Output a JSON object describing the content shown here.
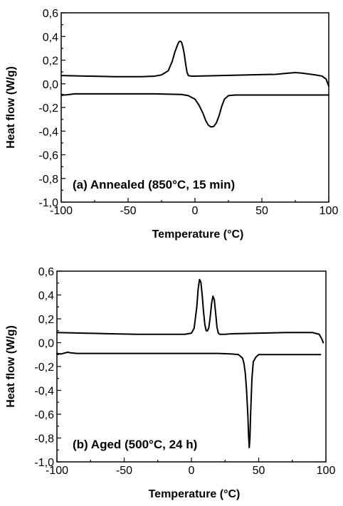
{
  "chart_data": [
    {
      "type": "line",
      "panel_label": "(a) Annealed (850°C, 15 min)",
      "xlabel": "Temperature (°C)",
      "ylabel": "Heat flow (W/g)",
      "xlim": [
        -100,
        100
      ],
      "ylim": [
        -1.0,
        0.6
      ],
      "x_ticks": [
        -100,
        -50,
        0,
        50,
        100
      ],
      "x_tick_labels": [
        "-100",
        "-50",
        "0",
        "50",
        "100"
      ],
      "y_ticks": [
        0.6,
        0.4,
        0.2,
        0.0,
        -0.2,
        -0.4,
        -0.6,
        -0.8,
        -1.0
      ],
      "y_tick_labels": [
        "0,6",
        "0,4",
        "0,2",
        "0,0",
        "-0,2",
        "-0,4",
        "-0,6",
        "-0,8",
        "-1,0"
      ],
      "grid": false,
      "series": [
        {
          "x": [
            -100,
            -80,
            -60,
            -40,
            -30,
            -25,
            -20,
            -17,
            -15,
            -13,
            -12,
            -11,
            -10,
            -9,
            -8,
            -7,
            -6,
            -5,
            -3,
            0,
            20,
            40,
            60,
            70,
            75,
            80,
            90,
            95,
            98,
            100
          ],
          "y": [
            0.07,
            0.065,
            0.06,
            0.06,
            0.065,
            0.075,
            0.11,
            0.19,
            0.27,
            0.33,
            0.355,
            0.36,
            0.35,
            0.31,
            0.25,
            0.17,
            0.1,
            0.07,
            0.065,
            0.065,
            0.07,
            0.075,
            0.08,
            0.09,
            0.095,
            0.09,
            0.075,
            0.065,
            0.04,
            -0.02
          ]
        },
        {
          "x": [
            -100,
            -97,
            -90,
            -70,
            -50,
            -30,
            -10,
            -5,
            0,
            3,
            6,
            8,
            10,
            12,
            14,
            16,
            18,
            20,
            22,
            25,
            30,
            40,
            60,
            80,
            100
          ],
          "y": [
            -0.09,
            -0.095,
            -0.085,
            -0.085,
            -0.085,
            -0.085,
            -0.09,
            -0.1,
            -0.13,
            -0.18,
            -0.25,
            -0.31,
            -0.35,
            -0.365,
            -0.36,
            -0.33,
            -0.27,
            -0.19,
            -0.13,
            -0.1,
            -0.095,
            -0.095,
            -0.095,
            -0.095,
            -0.095
          ]
        }
      ]
    },
    {
      "type": "line",
      "panel_label": "(b) Aged (500°C, 24 h)",
      "xlabel": "Temperature (°C)",
      "ylabel": "Heat flow (W/g)",
      "xlim": [
        -100,
        100
      ],
      "ylim": [
        -1.0,
        0.6
      ],
      "x_ticks": [
        -100,
        -50,
        0,
        50,
        100
      ],
      "x_tick_labels": [
        "-100",
        "-50",
        "0",
        "50",
        "100"
      ],
      "y_ticks": [
        0.6,
        0.4,
        0.2,
        0.0,
        -0.2,
        -0.4,
        -0.6,
        -0.8,
        -1.0
      ],
      "y_tick_labels": [
        "0,6",
        "0,4",
        "0,2",
        "0,0",
        "-0,2",
        "-0,4",
        "-0,6",
        "-0,8",
        "-1,0"
      ],
      "grid": false,
      "series": [
        {
          "x": [
            -100,
            -80,
            -60,
            -40,
            -20,
            -5,
            0,
            2,
            4,
            5,
            6,
            7,
            8,
            9,
            10,
            11,
            12,
            13,
            14,
            15,
            16,
            17,
            18,
            19,
            20,
            21,
            22,
            23,
            25,
            30,
            50,
            70,
            90,
            95,
            97,
            98
          ],
          "y": [
            0.085,
            0.08,
            0.075,
            0.07,
            0.07,
            0.07,
            0.08,
            0.12,
            0.3,
            0.45,
            0.53,
            0.51,
            0.4,
            0.26,
            0.15,
            0.1,
            0.1,
            0.13,
            0.22,
            0.33,
            0.39,
            0.36,
            0.25,
            0.13,
            0.08,
            0.07,
            0.07,
            0.07,
            0.07,
            0.075,
            0.08,
            0.085,
            0.085,
            0.07,
            0.03,
            0.0
          ]
        },
        {
          "x": [
            -100,
            -97,
            -92,
            -90,
            -85,
            -70,
            -50,
            -30,
            -10,
            0,
            10,
            20,
            30,
            35,
            38,
            39,
            40,
            41,
            42,
            42.5,
            43,
            43.5,
            44,
            45,
            46,
            48,
            50,
            60,
            80,
            96
          ],
          "y": [
            -0.09,
            -0.095,
            -0.08,
            -0.085,
            -0.09,
            -0.09,
            -0.09,
            -0.09,
            -0.09,
            -0.09,
            -0.09,
            -0.09,
            -0.095,
            -0.1,
            -0.13,
            -0.17,
            -0.25,
            -0.4,
            -0.62,
            -0.78,
            -0.88,
            -0.8,
            -0.6,
            -0.3,
            -0.16,
            -0.12,
            -0.1,
            -0.1,
            -0.1,
            -0.1
          ]
        }
      ]
    }
  ]
}
